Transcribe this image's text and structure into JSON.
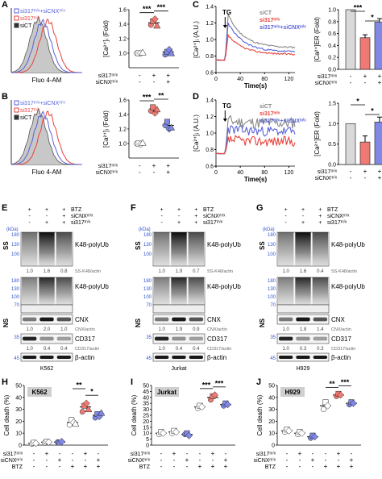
{
  "panel_letters": [
    "A",
    "B",
    "C",
    "D",
    "E",
    "F",
    "G",
    "H",
    "I",
    "J"
  ],
  "sym": {
    "plus": "+",
    "minus": "-"
  },
  "flow": {
    "A": {
      "legend": [
        "si317ᵐⁱˣ+siCNXᵐⁱˣ",
        "si317ᵐⁱˣ",
        "siCT"
      ],
      "xlabel": "Fluo 4-AM"
    },
    "B": {
      "legend": [
        "si317ᵐⁱˣ+siCNXᵐⁱˣ",
        "si317ᵐⁱˣ",
        "siCT"
      ],
      "xlabel": "Fluo 4-AM"
    }
  },
  "ca_text": {
    "ylabel_i": "[Ca²⁺]ᵢ (Fold)",
    "ylabel_er": "[Ca²⁺]ER (Fold)",
    "trace_ylabel": "[Ca²⁺]ᵢ (A.U.)",
    "xlabel": "Time(s)",
    "tg": "TG",
    "row1": "si317ᵐⁱˣ",
    "row2": "siCNXᵐⁱˣ",
    "legend": [
      "siCT",
      "si317ᵐⁱˣ",
      "si317ᵐⁱˣ+siCNXᵐⁱˣ"
    ]
  },
  "colors": {
    "siCT": "#888888",
    "si317": "#e8413a",
    "dbl": "#5863d8",
    "gray_bar": "#d9d9d9",
    "red_bar": "#f07a73",
    "blue_bar": "#8088e6"
  },
  "chart_data": [
    {
      "type": "scatter",
      "panel": "A",
      "ylabel": "[Ca²⁺]ᵢ (Fold)",
      "ylim": [
        0.8,
        1.6
      ],
      "yticks": [
        1.0,
        1.2,
        1.4,
        1.6
      ],
      "groups": [
        {
          "mean": 1.0,
          "points": [
            1.0,
            1.0,
            1.0,
            1.01
          ]
        },
        {
          "mean": 1.42,
          "points": [
            1.39,
            1.44,
            1.47,
            1.38
          ]
        },
        {
          "mean": 1.02,
          "points": [
            0.98,
            1.02,
            1.05,
            1.0
          ]
        }
      ],
      "sig": [
        {
          "from": 0,
          "to": 1,
          "label": "***"
        },
        {
          "from": 1,
          "to": 2,
          "label": "***"
        }
      ]
    },
    {
      "type": "scatter",
      "panel": "B",
      "ylabel": "[Ca²⁺]ᵢ (Fold)",
      "ylim": [
        0.8,
        1.6
      ],
      "yticks": [
        1.0,
        1.2,
        1.4,
        1.6
      ],
      "groups": [
        {
          "mean": 1.0,
          "points": [
            1.0,
            1.0,
            0.99,
            1.01
          ]
        },
        {
          "mean": 1.45,
          "points": [
            1.45,
            1.5,
            1.42,
            1.47
          ]
        },
        {
          "mean": 1.25,
          "points": [
            1.25,
            1.3,
            1.2,
            1.22
          ]
        }
      ],
      "sig": [
        {
          "from": 0,
          "to": 1,
          "label": "***"
        },
        {
          "from": 1,
          "to": 2,
          "label": "**"
        }
      ]
    },
    {
      "type": "line",
      "panel": "C",
      "ylabel": "[Ca²⁺]ᵢ (A.U.)",
      "xlabel": "Time(s)",
      "ylim": [
        0.6,
        1.4
      ],
      "xticks": [
        0,
        40,
        80,
        120
      ],
      "yticks": [
        0.6,
        0.8,
        1.0,
        1.2,
        1.4
      ]
    },
    {
      "type": "bar",
      "panel": "C",
      "ylabel": "[Ca²⁺]ER (Fold)",
      "ylim": [
        0.0,
        1.0
      ],
      "yticks": [
        0.0,
        0.2,
        0.4,
        0.6,
        0.8,
        1.0
      ],
      "values": [
        1.0,
        0.53,
        0.79
      ],
      "errors": [
        0,
        0.05,
        0.06
      ],
      "sig": [
        {
          "from": 0,
          "to": 1,
          "label": "***"
        },
        {
          "from": 1,
          "to": 2,
          "label": "*"
        }
      ]
    },
    {
      "type": "line",
      "panel": "D",
      "ylabel": "[Ca²⁺]ᵢ (A.U.)",
      "xlabel": "Time(s)",
      "ylim": [
        0.6,
        1.4
      ],
      "xticks": [
        0,
        40,
        80,
        120
      ],
      "yticks": [
        0.6,
        0.8,
        1.0,
        1.2,
        1.4
      ]
    },
    {
      "type": "bar",
      "panel": "D",
      "ylabel": "[Ca²⁺]ER (Fold)",
      "ylim": [
        0.0,
        1.5
      ],
      "yticks": [
        0.0,
        0.5,
        1.0,
        1.5
      ],
      "values": [
        1.0,
        0.55,
        1.04
      ],
      "errors": [
        0,
        0.15,
        0.12
      ],
      "sig": [
        {
          "from": 0,
          "to": 1,
          "label": "*"
        },
        {
          "from": 1,
          "to": 2,
          "label": "*"
        }
      ]
    },
    {
      "type": "scatter",
      "panel": "H",
      "label": "K562",
      "ylabel": "Cell death (%)",
      "ylim": [
        0,
        50
      ],
      "yticks": [
        0,
        10,
        20,
        30,
        40,
        50
      ],
      "groups": [
        {
          "mean": 1.5,
          "points": [
            1,
            2,
            1.5
          ]
        },
        {
          "mean": 2.5,
          "points": [
            2,
            3,
            2.5
          ]
        },
        {
          "mean": 2.5,
          "points": [
            2.5,
            2,
            3
          ]
        },
        {
          "mean": 19,
          "points": [
            17,
            21,
            19,
            18
          ]
        },
        {
          "mean": 32,
          "points": [
            28,
            33,
            35,
            30
          ]
        },
        {
          "mean": 25,
          "points": [
            23,
            26,
            24,
            27
          ]
        }
      ],
      "sig": [
        {
          "from": 3,
          "to": 4,
          "label": "**"
        },
        {
          "from": 4,
          "to": 5,
          "label": "*"
        }
      ]
    },
    {
      "type": "scatter",
      "panel": "I",
      "label": "Jurkat",
      "ylabel": "Cell death (%)",
      "ylim": [
        0,
        50
      ],
      "yticks": [
        0,
        5,
        10,
        15,
        20,
        25,
        30,
        35,
        40,
        45,
        50
      ],
      "groups": [
        {
          "mean": 10,
          "points": [
            9,
            11,
            10
          ]
        },
        {
          "mean": 11,
          "points": [
            10,
            12,
            11
          ]
        },
        {
          "mean": 9,
          "points": [
            9,
            10,
            8
          ]
        },
        {
          "mean": 32,
          "points": [
            31,
            33,
            32
          ]
        },
        {
          "mean": 40,
          "points": [
            38,
            41,
            42
          ]
        },
        {
          "mean": 34,
          "points": [
            33,
            35,
            34
          ]
        }
      ],
      "sig": [
        {
          "from": 3,
          "to": 4,
          "label": "***"
        },
        {
          "from": 4,
          "to": 5,
          "label": "***"
        }
      ]
    },
    {
      "type": "scatter",
      "panel": "J",
      "label": "H929",
      "ylabel": "Cell death (%)",
      "ylim": [
        0,
        50
      ],
      "yticks": [
        0,
        10,
        20,
        30,
        40,
        50
      ],
      "groups": [
        {
          "mean": 12,
          "points": [
            11,
            13,
            12
          ]
        },
        {
          "mean": 10,
          "points": [
            9,
            11,
            10
          ]
        },
        {
          "mean": 7,
          "points": [
            6,
            8,
            7
          ]
        },
        {
          "mean": 33,
          "points": [
            30,
            36,
            33
          ]
        },
        {
          "mean": 42,
          "points": [
            41,
            43,
            42
          ]
        },
        {
          "mean": 35,
          "points": [
            34,
            36,
            35
          ]
        }
      ],
      "sig": [
        {
          "from": 3,
          "to": 4,
          "label": "**"
        },
        {
          "from": 4,
          "to": 5,
          "label": "***"
        }
      ]
    }
  ],
  "western": {
    "E": {
      "cell": "K562",
      "bands": [
        "K48-polyUb",
        "CNX",
        "CD317",
        "β-actin"
      ],
      "q_ss": [
        "1.0",
        "1.6",
        "0.8"
      ],
      "q_cnx": [
        "1.0",
        "2.0",
        "1.0"
      ],
      "q_cd317": [
        "1.0",
        "0.4",
        "0.4"
      ]
    },
    "F": {
      "cell": "Jurkat",
      "bands": [
        "K48-polyUb",
        "CNX",
        "CD317",
        "β-actin"
      ],
      "q_ss": [
        "1.0",
        "1.9",
        "0.7"
      ],
      "q_cnx": [
        "1.0",
        "1.9",
        "0.9"
      ],
      "q_cd317": [
        "1.0",
        "0.4",
        "0.4"
      ]
    },
    "G": {
      "cell": "H929",
      "bands": [
        "K48-polyUb",
        "CNX",
        "CD317",
        "β-actin"
      ],
      "q_ss": [
        "1.0",
        "1.6",
        "0.4"
      ],
      "q_cnx": [
        "1.0",
        "1.8",
        "1.4"
      ],
      "q_cd317": [
        "1.0",
        "0.3",
        "0.3"
      ]
    },
    "labels": {
      "btz": "BTZ",
      "sicnx": "siCNXᵐⁱˣ",
      "si317": "si317ᵐⁱˣ",
      "ss": "SS",
      "ns": "NS",
      "kda": "(kDa)",
      "ss_ratio": "SS-K48/actin",
      "cnx_ratio": "CNX/actin",
      "cd317_ratio": "CD317/actin",
      "mw_top": [
        "180",
        "130",
        "100"
      ],
      "mw_bot": [
        "180",
        "130",
        "100",
        "70",
        "35",
        "45"
      ]
    }
  },
  "death": {
    "row1": "si317ᵐⁱˣ",
    "row2": "siCNXᵐⁱˣ",
    "row3": "BTZ",
    "signs": [
      [
        "-",
        "+",
        "-",
        "-",
        "+",
        "-"
      ],
      [
        "-",
        "-",
        "+",
        "-",
        "-",
        "+"
      ],
      [
        "-",
        "-",
        "-",
        "+",
        "+",
        "+"
      ]
    ]
  }
}
